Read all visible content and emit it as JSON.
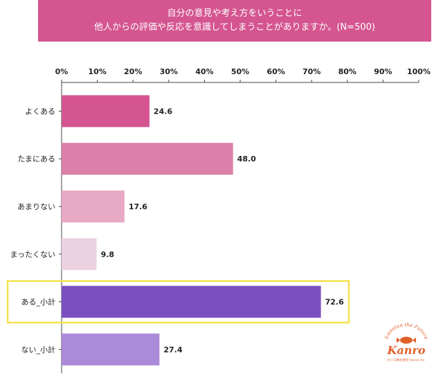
{
  "title": {
    "line1": "自分の意見や考え方をいうことに",
    "line2": "他人からの評価や反応を意識してしまうことがありますか。(N=500)"
  },
  "chart_data": {
    "type": "bar",
    "orientation": "horizontal",
    "xlim": [
      0,
      100
    ],
    "x_ticks": [
      "0%",
      "10%",
      "20%",
      "30%",
      "40%",
      "50%",
      "60%",
      "70%",
      "80%",
      "90%",
      "100%"
    ],
    "categories": [
      "よくある",
      "たまにある",
      "あまりない",
      "まったくない",
      "ある_小計",
      "ない_小計"
    ],
    "values": [
      24.6,
      48.0,
      17.6,
      9.8,
      72.6,
      27.4
    ],
    "value_labels": [
      "24.6",
      "48.0",
      "17.6",
      "9.8",
      "72.6",
      "27.4"
    ],
    "colors": [
      "#d4558f",
      "#dc7fa9",
      "#e8a9c5",
      "#ecd1e1",
      "#7b4fc0",
      "#ab8ad9"
    ],
    "highlighted_category": "ある_小計",
    "highlight_color": "#f2e24b",
    "grid": false
  },
  "logo": {
    "arc_text": "Sweeten the Future",
    "name": "Kanro",
    "tagline": "カンロ株式会社 Kanro Inc.",
    "color": "#e0602a"
  }
}
